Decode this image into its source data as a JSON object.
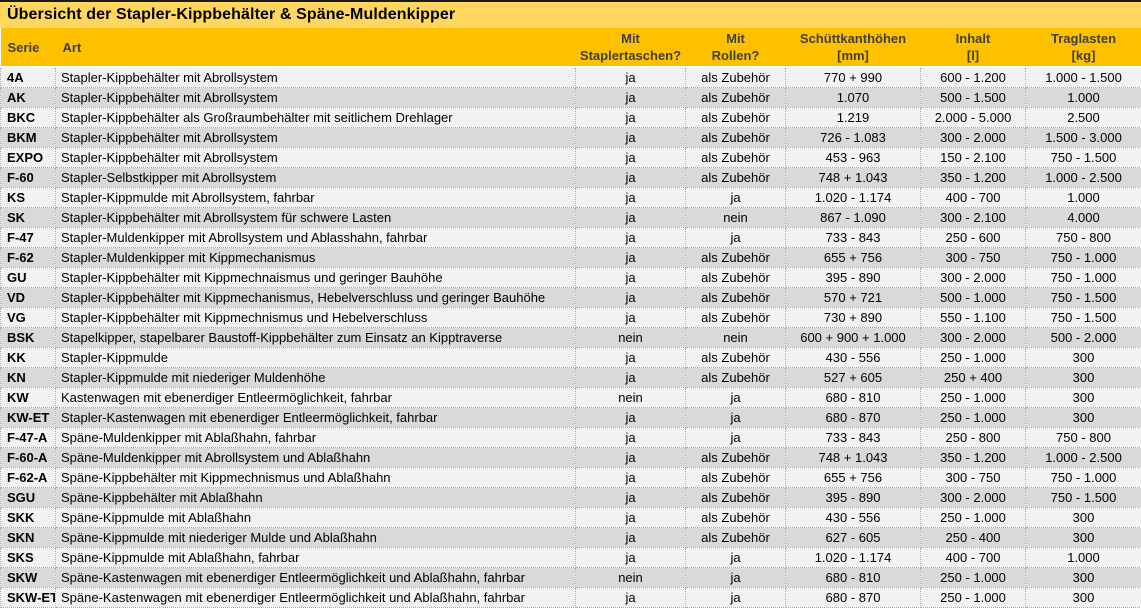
{
  "title": "Übersicht der Stapler-Kippbehälter & Späne-Muldenkipper",
  "colors": {
    "title_bg": "#FFD75E",
    "header_bg": "#FFC000",
    "header_text": "#3F3F3F",
    "row_light": "#F2F2F2",
    "row_dark": "#D9D9D9",
    "top_border": "#1A1A1A"
  },
  "table": {
    "columns": [
      {
        "key": "serie",
        "label": "Serie",
        "label2": ""
      },
      {
        "key": "art",
        "label": "Art",
        "label2": ""
      },
      {
        "key": "taschen",
        "label": "Mit",
        "label2": "Staplertaschen?"
      },
      {
        "key": "rollen",
        "label": "Mit",
        "label2": "Rollen?"
      },
      {
        "key": "hoehen",
        "label": "Schüttkanthöhen",
        "label2": "[mm]"
      },
      {
        "key": "inhalt",
        "label": "Inhalt",
        "label2": "[l]"
      },
      {
        "key": "traglast",
        "label": "Traglasten",
        "label2": "[kg]"
      }
    ],
    "rows": [
      [
        "4A",
        "Stapler-Kippbehälter mit Abrollsystem",
        "ja",
        "als Zubehör",
        "770 + 990",
        "600 - 1.200",
        "1.000 - 1.500"
      ],
      [
        "AK",
        "Stapler-Kippbehälter mit Abrollsystem",
        "ja",
        "als Zubehör",
        "1.070",
        "500 - 1.500",
        "1.000"
      ],
      [
        "BKC",
        "Stapler-Kippbehälter als Großraumbehälter mit seitlichem Drehlager",
        "ja",
        "als Zubehör",
        "1.219",
        "2.000 - 5.000",
        "2.500"
      ],
      [
        "BKM",
        "Stapler-Kippbehälter mit Abrollsystem",
        "ja",
        "als Zubehör",
        "726 - 1.083",
        "300 - 2.000",
        "1.500 - 3.000"
      ],
      [
        "EXPO",
        "Stapler-Kippbehälter mit Abrollsystem",
        "ja",
        "als Zubehör",
        "453 - 963",
        "150 - 2.100",
        "750 - 1.500"
      ],
      [
        "F-60",
        "Stapler-Selbstkipper mit Abrollsystem",
        "ja",
        "als Zubehör",
        "748 + 1.043",
        "350 - 1.200",
        "1.000 - 2.500"
      ],
      [
        "KS",
        "Stapler-Kippmulde mit Abrollsystem, fahrbar",
        "ja",
        "ja",
        "1.020 - 1.174",
        "400 - 700",
        "1.000"
      ],
      [
        "SK",
        "Stapler-Kippbehälter mit Abrollsystem für schwere Lasten",
        "ja",
        "nein",
        "867 - 1.090",
        "300 - 2.100",
        "4.000"
      ],
      [
        "F-47",
        "Stapler-Muldenkipper mit Abrollsystem und Ablasshahn, fahrbar",
        "ja",
        "ja",
        "733 - 843",
        "250 - 600",
        "750 - 800"
      ],
      [
        "F-62",
        "Stapler-Muldenkipper mit Kippmechanismus",
        "ja",
        "als Zubehör",
        "655 + 756",
        "300 - 750",
        "750 - 1.000"
      ],
      [
        "GU",
        "Stapler-Kippbehälter mit Kippmechnaismus und geringer Bauhöhe",
        "ja",
        "als Zubehör",
        "395 - 890",
        "300 - 2.000",
        "750 - 1.000"
      ],
      [
        "VD",
        "Stapler-Kippbehälter mit Kippmechanismus, Hebelverschluss und geringer Bauhöhe",
        "ja",
        "als Zubehör",
        "570 + 721",
        "500 - 1.000",
        "750 - 1.500"
      ],
      [
        "VG",
        "Stapler-Kippbehälter mit Kippmechnismus und Hebelverschluss",
        "ja",
        "als Zubehör",
        "730 + 890",
        "550 - 1.100",
        "750 - 1.500"
      ],
      [
        "BSK",
        "Stapelkipper, stapelbarer Baustoff-Kippbehälter zum Einsatz an Kipptraverse",
        "nein",
        "nein",
        "600 + 900 + 1.000",
        "300 - 2.000",
        "500 - 2.000"
      ],
      [
        "KK",
        "Stapler-Kippmulde",
        "ja",
        "als Zubehör",
        "430 - 556",
        "250 - 1.000",
        "300"
      ],
      [
        "KN",
        "Stapler-Kippmulde mit niederiger Muldenhöhe",
        "ja",
        "als Zubehör",
        "527 + 605",
        "250 + 400",
        "300"
      ],
      [
        "KW",
        "Kastenwagen mit ebenerdiger Entleermöglichkeit, fahrbar",
        "nein",
        "ja",
        "680 - 810",
        "250 - 1.000",
        "300"
      ],
      [
        "KW-ET",
        "Stapler-Kastenwagen mit ebenerdiger Entleermöglichkeit, fahrbar",
        "ja",
        "ja",
        "680 - 870",
        "250 - 1.000",
        "300"
      ],
      [
        "F-47-A",
        "Späne-Muldenkipper mit Ablaßhahn, fahrbar",
        "ja",
        "ja",
        "733 - 843",
        "250 - 800",
        "750 - 800"
      ],
      [
        "F-60-A",
        "Späne-Muldenkipper mit Abrollsystem und Ablaßhahn",
        "ja",
        "als Zubehör",
        "748 + 1.043",
        "350 - 1.200",
        "1.000 - 2.500"
      ],
      [
        "F-62-A",
        "Späne-Kippbehälter mit Kippmechnismus und Ablaßhahn",
        "ja",
        "als Zubehör",
        "655 + 756",
        "300 - 750",
        "750 - 1.000"
      ],
      [
        "SGU",
        "Späne-Kippbehälter mit Ablaßhahn",
        "ja",
        "als Zubehör",
        "395 - 890",
        "300 - 2.000",
        "750 - 1.500"
      ],
      [
        "SKK",
        "Späne-Kippmulde mit Ablaßhahn",
        "ja",
        "als Zubehör",
        "430 - 556",
        "250 - 1.000",
        "300"
      ],
      [
        "SKN",
        "Späne-Kippmulde mit niederiger Mulde und Ablaßhahn",
        "ja",
        "als Zubehör",
        "627 - 605",
        "250 - 400",
        "300"
      ],
      [
        "SKS",
        "Späne-Kippmulde mit Ablaßhahn, fahrbar",
        "ja",
        "ja",
        "1.020 - 1.174",
        "400 - 700",
        "1.000"
      ],
      [
        "SKW",
        "Späne-Kastenwagen mit ebenerdiger Entleermöglichkeit und Ablaßhahn, fahrbar",
        "nein",
        "ja",
        "680 - 810",
        "250 - 1.000",
        "300"
      ],
      [
        "SKW-ET",
        "Späne-Kastenwagen mit ebenerdiger Entleermöglichkeit und Ablaßhahn, fahrbar",
        "ja",
        "ja",
        "680 - 870",
        "250 - 1.000",
        "300"
      ]
    ]
  }
}
